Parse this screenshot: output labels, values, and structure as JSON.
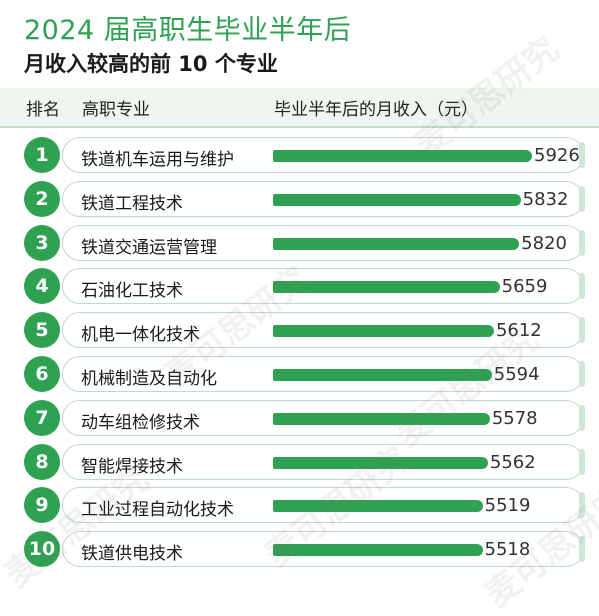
{
  "title": "2024 届高职生毕业半年后",
  "subtitle": "月收入较高的前 10 个专业",
  "header": {
    "rank": "排名",
    "major": "高职专业",
    "income": "毕业半年后的月收入（元）"
  },
  "watermark": "麦可思研究",
  "colors": {
    "accent": "#2fa152",
    "band": "#eef6ef",
    "pill_border": "#c3d9c8"
  },
  "chart_data": {
    "type": "bar",
    "orientation": "horizontal",
    "title": "2024 届高职生毕业半年后",
    "subtitle": "月收入较高的前 10 个专业",
    "ylabel": "毕业半年后的月收入（元）",
    "categories": [
      "铁道机车运用与维护",
      "铁道工程技术",
      "铁道交通运营管理",
      "石油化工技术",
      "机电一体化技术",
      "机械制造及自动化",
      "动车组检修技术",
      "智能焊接技术",
      "工业过程自动化技术",
      "铁道供电技术"
    ],
    "ranks": [
      "1",
      "2",
      "3",
      "4",
      "5",
      "6",
      "7",
      "8",
      "9",
      "10"
    ],
    "values": [
      5926,
      5832,
      5820,
      5659,
      5612,
      5594,
      5578,
      5562,
      5519,
      5518
    ],
    "value_labels": [
      "5926",
      "5832",
      "5820",
      "5659",
      "5612",
      "5594",
      "5578",
      "5562",
      "5519",
      "5518"
    ]
  }
}
